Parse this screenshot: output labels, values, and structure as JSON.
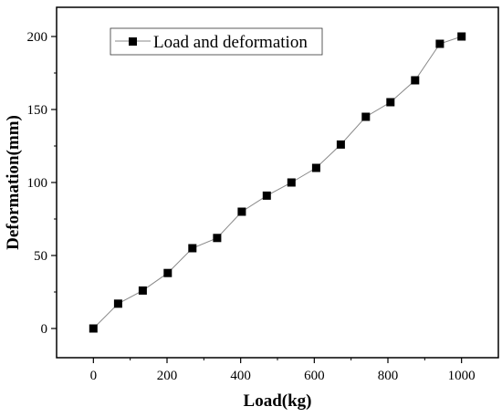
{
  "chart_data": {
    "type": "line",
    "xlabel": "Load(kg)",
    "ylabel": "Deformation(mm)",
    "xlim": [
      -100,
      1100
    ],
    "ylim": [
      -20,
      220
    ],
    "xticks": [
      0,
      200,
      400,
      600,
      800,
      1000
    ],
    "yticks": [
      0,
      50,
      100,
      150,
      200
    ],
    "xtick_labels": [
      "0",
      "200",
      "400",
      "600",
      "800",
      "1000"
    ],
    "ytick_labels": [
      "0",
      "50",
      "100",
      "150",
      "200"
    ],
    "grid": false,
    "legend_position": "top-left",
    "series": [
      {
        "name": "Load and deformation",
        "marker": "square",
        "line_color": "#888888",
        "marker_color": "#000000",
        "x": [
          0,
          67,
          134,
          202,
          269,
          336,
          403,
          471,
          538,
          605,
          672,
          740,
          807,
          874,
          941,
          1000
        ],
        "y": [
          0,
          17,
          26,
          38,
          55,
          62,
          80,
          91,
          100,
          110,
          126,
          145,
          155,
          170,
          195,
          200
        ]
      }
    ]
  }
}
